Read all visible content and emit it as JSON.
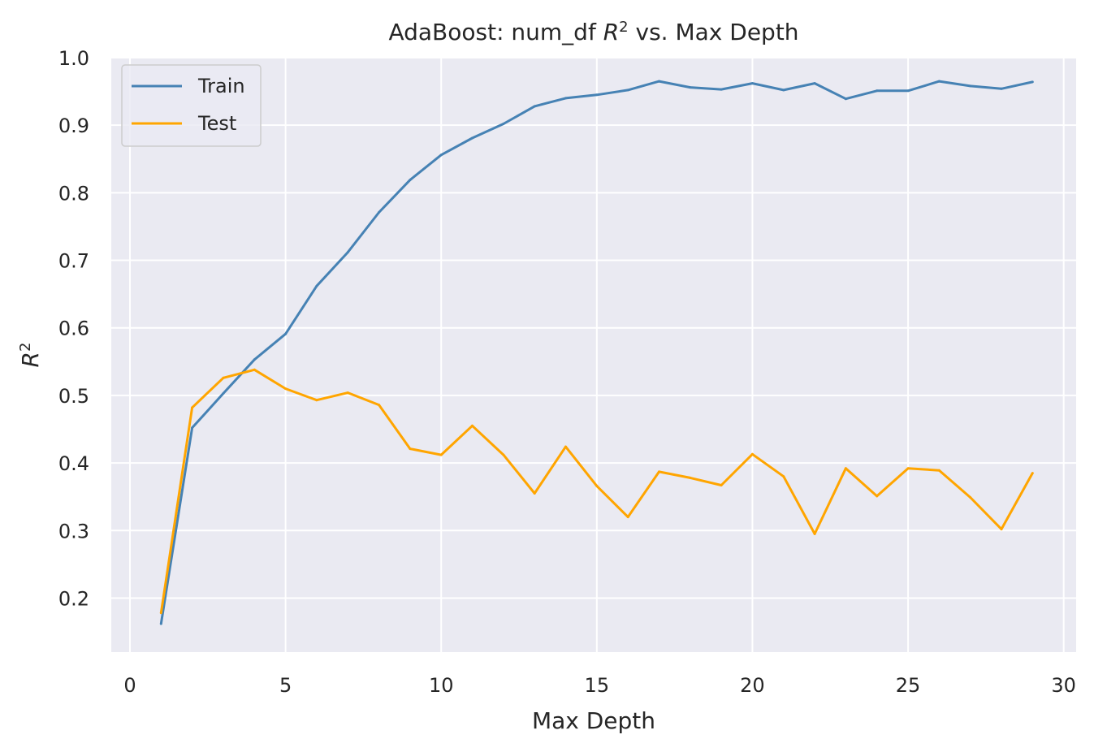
{
  "chart_data": {
    "type": "line",
    "title_prefix": "AdaBoost: num_df ",
    "title_var": "R",
    "title_sup": "2",
    "title_suffix": " vs. Max Depth",
    "xlabel": "Max Depth",
    "ylabel_var": "R",
    "ylabel_sup": "2",
    "xlim": [
      -0.6,
      30.4
    ],
    "ylim": [
      0.12,
      1.0
    ],
    "xticks": [
      0,
      5,
      10,
      15,
      20,
      25,
      30
    ],
    "yticks": [
      0.2,
      0.3,
      0.4,
      0.5,
      0.6,
      0.7,
      0.8,
      0.9,
      1.0
    ],
    "ytick_labels": [
      "0.2",
      "0.3",
      "0.4",
      "0.5",
      "0.6",
      "0.7",
      "0.8",
      "0.9",
      "1.0"
    ],
    "grid": true,
    "legend_position": "top-left",
    "x": [
      1,
      2,
      3,
      4,
      5,
      6,
      7,
      8,
      9,
      10,
      11,
      12,
      13,
      14,
      15,
      16,
      17,
      18,
      19,
      20,
      21,
      22,
      23,
      24,
      25,
      26,
      27,
      28,
      29
    ],
    "series": [
      {
        "name": "Train",
        "color": "#4682b4",
        "values": [
          0.162,
          0.452,
          0.503,
          0.553,
          0.591,
          0.662,
          0.712,
          0.771,
          0.819,
          0.856,
          0.881,
          0.902,
          0.928,
          0.94,
          0.945,
          0.952,
          0.965,
          0.956,
          0.953,
          0.962,
          0.952,
          0.962,
          0.939,
          0.951,
          0.951,
          0.965,
          0.958,
          0.954,
          0.964
        ]
      },
      {
        "name": "Test",
        "color": "#ffa500",
        "values": [
          0.178,
          0.482,
          0.526,
          0.538,
          0.51,
          0.493,
          0.504,
          0.486,
          0.421,
          0.412,
          0.455,
          0.412,
          0.355,
          0.424,
          0.366,
          0.32,
          0.387,
          0.378,
          0.367,
          0.413,
          0.38,
          0.295,
          0.392,
          0.351,
          0.392,
          0.389,
          0.349,
          0.302,
          0.385
        ]
      }
    ]
  },
  "colors": {
    "plot_background": "#eaeaf2",
    "grid": "#ffffff",
    "text": "#262626"
  }
}
